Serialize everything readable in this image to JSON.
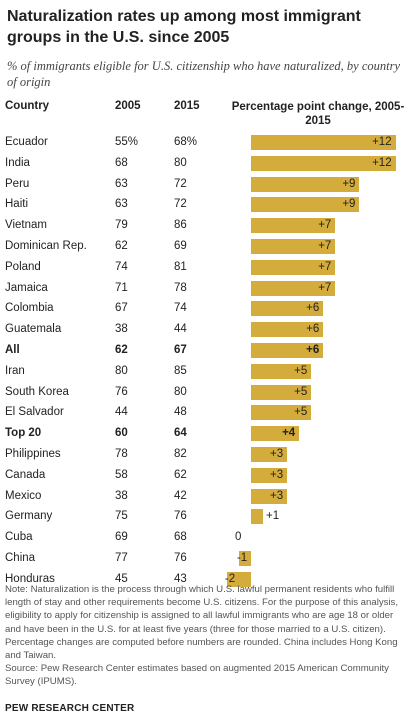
{
  "title": "Naturalization rates up among most immigrant groups in the U.S. since 2005",
  "subtitle": "% of immigrants eligible for U.S. citizenship who have naturalized, by country of origin",
  "headers": {
    "country": "Country",
    "y2005": "2005",
    "y2015": "2015",
    "change": "Percentage point change, 2005-2015"
  },
  "colors": {
    "bar": "#d4ac3c",
    "label_inside": "#222222"
  },
  "chart_data": {
    "type": "bar",
    "orientation": "horizontal",
    "title": "Naturalization rates up among most immigrant groups in the U.S. since 2005",
    "xlabel": "Percentage point change, 2005-2015",
    "categories": [
      "Ecuador",
      "India",
      "Peru",
      "Haiti",
      "Vietnam",
      "Dominican Rep.",
      "Poland",
      "Jamaica",
      "Colombia",
      "Guatemala",
      "All",
      "Iran",
      "South Korea",
      "El Salvador",
      "Top 20",
      "Philippines",
      "Canada",
      "Mexico",
      "Germany",
      "Cuba",
      "China",
      "Honduras"
    ],
    "values": [
      12,
      12,
      9,
      9,
      7,
      7,
      7,
      7,
      6,
      6,
      6,
      5,
      5,
      5,
      4,
      3,
      3,
      3,
      1,
      0,
      -1,
      -2
    ],
    "value_labels": [
      "+12",
      "+12",
      "+9",
      "+9",
      "+7",
      "+7",
      "+7",
      "+7",
      "+6",
      "+6",
      "+6",
      "+5",
      "+5",
      "+5",
      "+4",
      "+3",
      "+3",
      "+3",
      "+1",
      "0",
      "-1",
      "-2"
    ],
    "table_2005": [
      "55%",
      "68",
      "63",
      "63",
      "79",
      "62",
      "74",
      "71",
      "67",
      "38",
      "62",
      "80",
      "76",
      "44",
      "60",
      "78",
      "58",
      "38",
      "75",
      "69",
      "77",
      "45"
    ],
    "table_2015": [
      "68%",
      "80",
      "72",
      "72",
      "86",
      "69",
      "81",
      "78",
      "74",
      "44",
      "67",
      "85",
      "80",
      "48",
      "64",
      "82",
      "62",
      "42",
      "76",
      "68",
      "76",
      "43"
    ],
    "bold_rows": [
      "All",
      "Top 20"
    ],
    "xlim": [
      -2,
      12
    ]
  },
  "notes": "Note: Naturalization is the process through which U.S. lawful permanent residents who fulfill length of stay and other requirements become U.S. citizens. For the purpose of this analysis, eligibility to apply for citizenship is assigned to all lawful immigrants who are age 18 or older and have been in the U.S. for at least five years (three for those married to a U.S. citizen). Percentage changes are computed before numbers are rounded. China includes Hong Kong and Taiwan.",
  "source": "Source: Pew Research Center estimates based on augmented 2015 American Community Survey (IPUMS).",
  "footer": "PEW RESEARCH CENTER"
}
